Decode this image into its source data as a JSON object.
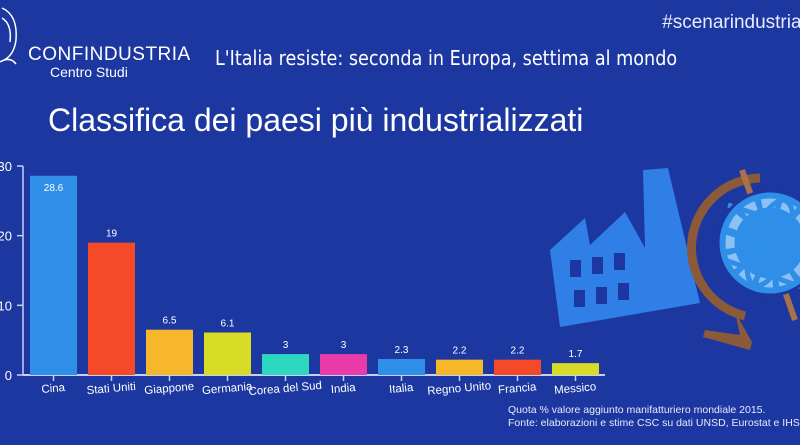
{
  "header": {
    "hashtag": "#scenarindustriali",
    "logo_name": "CONFINDUSTRIA",
    "logo_sub": "Centro Studi",
    "subtitle": "L'Italia resiste: seconda in Europa, settima al mondo",
    "title": "Classifica dei paesi più industrializzati"
  },
  "footnote": {
    "line1": "Quota % valore aggiunto manifatturiero mondiale 2015.",
    "line2": "Fonte: elaborazioni e stime CSC su dati UNSD, Eurostat e IHS"
  },
  "colors": {
    "background": "#1c37a0",
    "factory": "#2f7fe6",
    "globe": "#2f8fe8",
    "stand": "#8a5a3a"
  },
  "icons": [
    "confindustria-logo",
    "factory-icon",
    "globe-icon"
  ],
  "chart_data": {
    "type": "bar",
    "categories": [
      "Cina",
      "Stati Uniti",
      "Giappone",
      "Germania",
      "Corea del Sud",
      "India",
      "Italia",
      "Regno Unito",
      "Francia",
      "Messico"
    ],
    "values": [
      28.6,
      19,
      6.5,
      6.1,
      3,
      3,
      2.3,
      2.2,
      2.2,
      1.7
    ],
    "value_labels": [
      "28.6",
      "19",
      "6.5",
      "6.1",
      "3",
      "3",
      "2.3",
      "2.2",
      "2.2",
      "1.7"
    ],
    "colors": [
      "#2f8fe8",
      "#f44a2a",
      "#f6b82a",
      "#d9dc26",
      "#2ed8c0",
      "#e83aa8",
      "#2f8fe8",
      "#f6b82a",
      "#f44a2a",
      "#d9dc26"
    ],
    "yticks": [
      0,
      10,
      20,
      30
    ],
    "ylim": [
      0,
      30
    ],
    "grid": false
  }
}
